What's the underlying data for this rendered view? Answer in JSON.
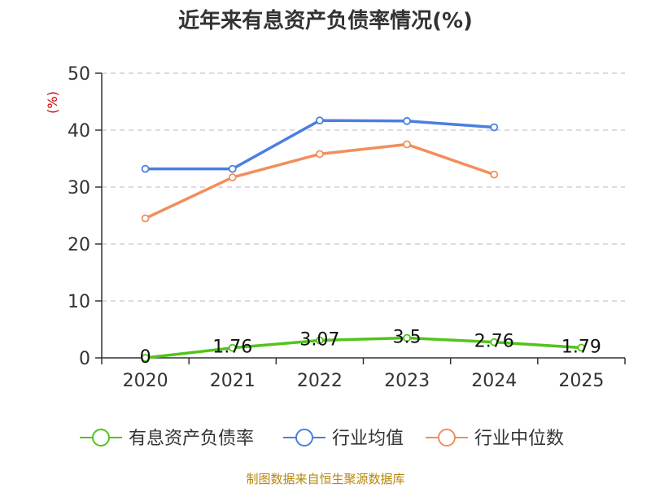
{
  "chart_data": {
    "type": "line",
    "title": "近年来有息资产负债率情况(%)",
    "ylabel": "(%)",
    "xlabel": "",
    "categories": [
      "2020",
      "2021",
      "2022",
      "2023",
      "2024",
      "2025"
    ],
    "ylim": [
      0,
      50
    ],
    "yticks": [
      0,
      10,
      20,
      30,
      40,
      50
    ],
    "grid": true,
    "legend_position": "bottom",
    "series": [
      {
        "name": "有息资产负债率",
        "color": "#52c41a",
        "values": [
          0,
          1.76,
          3.07,
          3.5,
          2.76,
          1.79
        ],
        "labels": [
          "0",
          "1.76",
          "3.07",
          "3.5",
          "2.76",
          "1.79"
        ]
      },
      {
        "name": "行业均值",
        "color": "#4a7fe0",
        "values": [
          33.2,
          33.2,
          41.7,
          41.6,
          40.5,
          null
        ]
      },
      {
        "name": "行业中位数",
        "color": "#f28e5b",
        "values": [
          24.5,
          31.7,
          35.8,
          37.5,
          32.2,
          null
        ]
      }
    ]
  },
  "source": "制图数据来自恒生聚源数据库"
}
